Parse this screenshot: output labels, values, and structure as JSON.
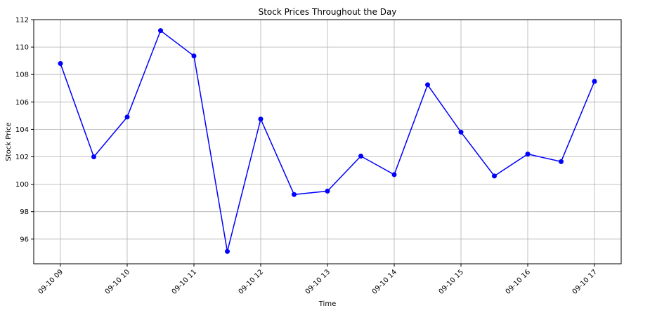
{
  "chart_data": {
    "type": "line",
    "title": "Stock Prices Throughout the Day",
    "xlabel": "Time",
    "ylabel": "Stock Price",
    "x": [
      "09-10 09:00",
      "09-10 09:30",
      "09-10 10:00",
      "09-10 10:30",
      "09-10 11:00",
      "09-10 11:30",
      "09-10 12:00",
      "09-10 12:30",
      "09-10 13:00",
      "09-10 13:30",
      "09-10 14:00",
      "09-10 14:30",
      "09-10 15:00",
      "09-10 15:30",
      "09-10 16:00",
      "09-10 16:30",
      "09-10 17:00"
    ],
    "xticks": [
      "09-10 09",
      "09-10 10",
      "09-10 11",
      "09-10 12",
      "09-10 13",
      "09-10 14",
      "09-10 15",
      "09-10 16",
      "09-10 17"
    ],
    "yticks": [
      96,
      98,
      100,
      102,
      104,
      106,
      108,
      110,
      112
    ],
    "ylim": [
      94.2,
      112
    ],
    "grid": true,
    "series": [
      {
        "color": "#0000ff",
        "marker": "circle",
        "values": [
          108.8,
          102.0,
          104.9,
          111.2,
          109.35,
          95.1,
          104.75,
          99.25,
          99.5,
          102.05,
          100.7,
          107.25,
          103.8,
          100.6,
          102.2,
          101.65,
          107.5
        ]
      }
    ]
  }
}
